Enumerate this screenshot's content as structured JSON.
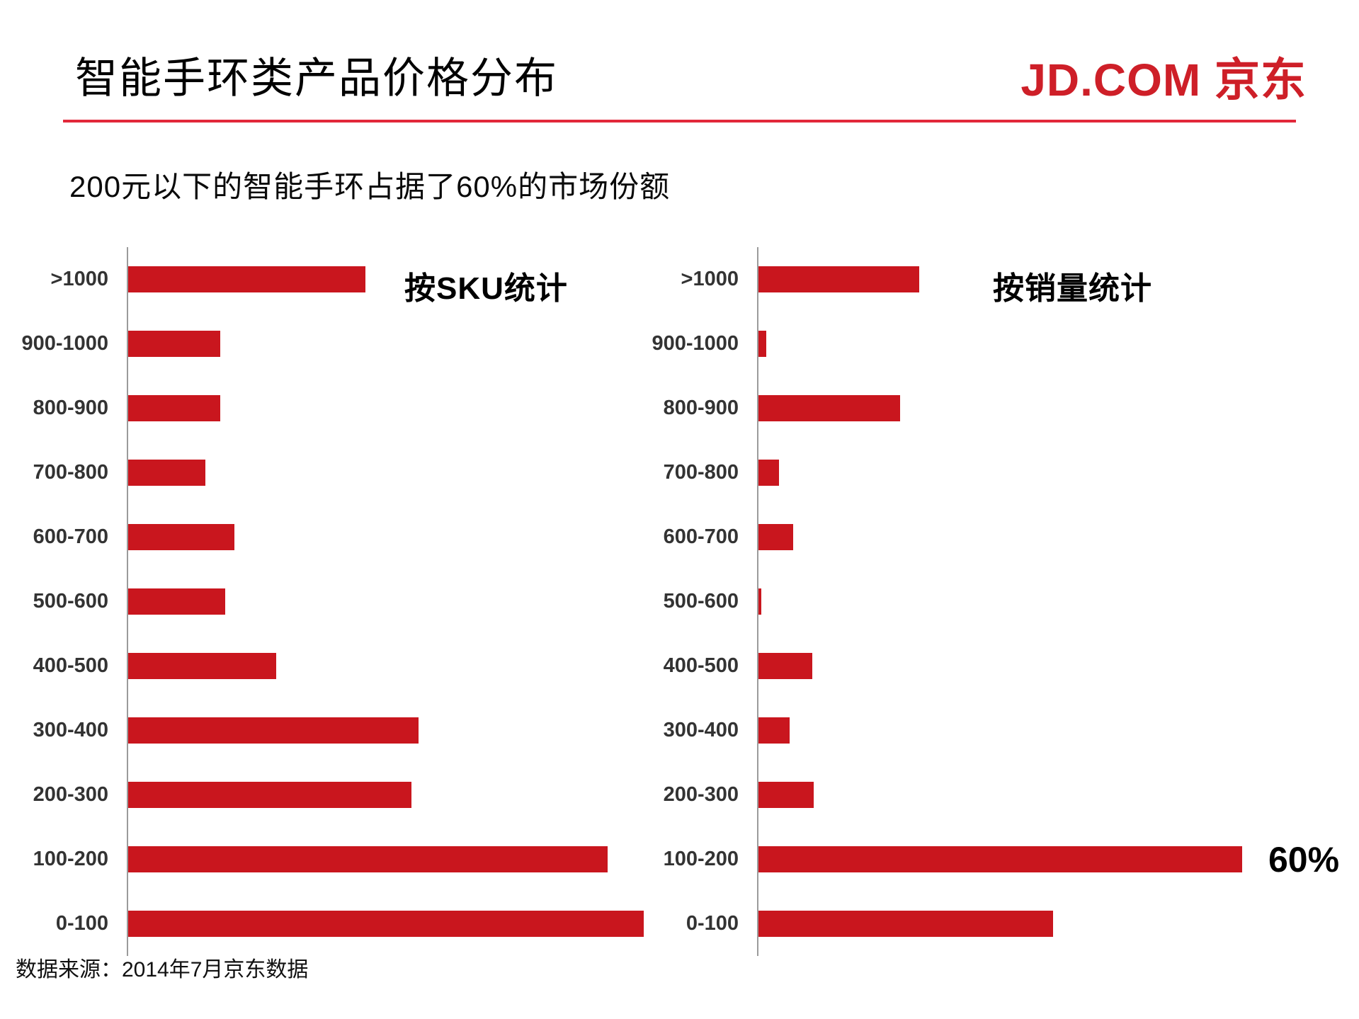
{
  "header": {
    "title": "智能手环类产品价格分布",
    "logo_text": "JD.COM 京东"
  },
  "subtitle": "200元以下的智能手环占据了60%的市场份额",
  "footer": {
    "source": "数据来源：2014年7月京东数据"
  },
  "colors": {
    "bar_red": "#C9161E",
    "logo_red": "#CE1F28",
    "divider_red": "#E2283A",
    "axis_gray": "#9B9B9B"
  },
  "chart_data": [
    {
      "type": "bar",
      "orientation": "horizontal",
      "title": "按SKU统计",
      "categories": [
        ">1000",
        "900-1000",
        "800-900",
        "700-800",
        "600-700",
        "500-600",
        "400-500",
        "300-400",
        "200-300",
        "100-200",
        "0-100"
      ],
      "values_percent": [
        9.8,
        3.8,
        3.8,
        3.2,
        4.4,
        4.0,
        6.1,
        12.0,
        11.7,
        19.8,
        21.3
      ],
      "unit": "%",
      "xlim": [
        0,
        22
      ],
      "grid": false,
      "legend": false,
      "annotations": []
    },
    {
      "type": "bar",
      "orientation": "horizontal",
      "title": "按销量统计",
      "categories": [
        ">1000",
        "900-1000",
        "800-900",
        "700-800",
        "600-700",
        "500-600",
        "400-500",
        "300-400",
        "200-300",
        "100-200",
        "0-100"
      ],
      "values_percent": [
        12.5,
        0.6,
        11.0,
        1.6,
        2.7,
        0.2,
        4.2,
        2.4,
        4.3,
        37.6,
        22.9
      ],
      "unit": "%",
      "xlim": [
        0,
        38
      ],
      "grid": false,
      "legend": false,
      "annotations": [
        {
          "category": "100-200",
          "text": "60%"
        }
      ]
    }
  ]
}
